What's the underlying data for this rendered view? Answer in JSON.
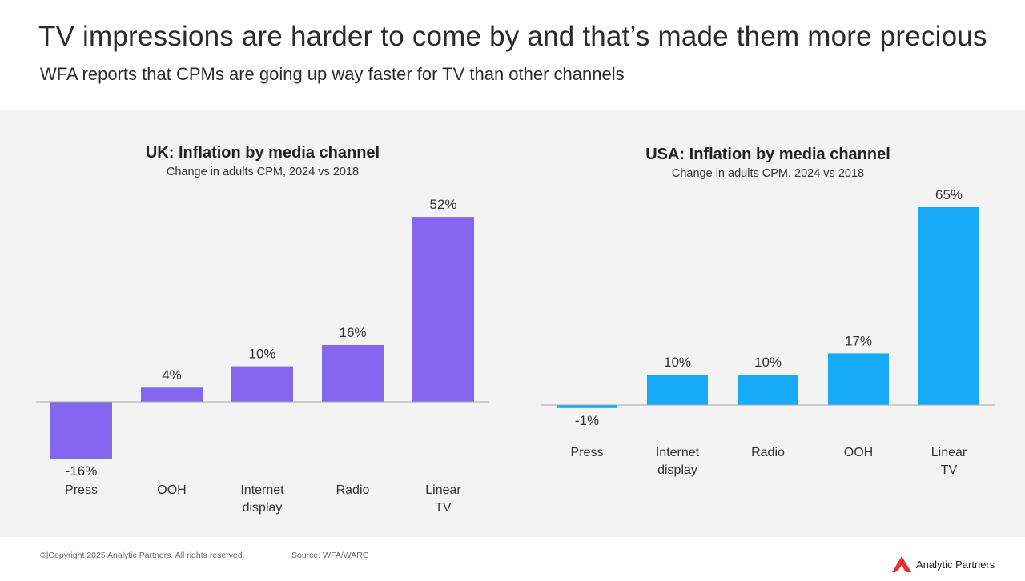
{
  "title": "TV impressions are harder to come by and that’s made them more precious",
  "subtitle": "WFA reports that CPMs are going up way faster for TV than other channels",
  "footer": {
    "copyright": "©|Copyright 2025 Analytic Partners. All rights reserved.",
    "source": "Source: WFA/WARC",
    "brand": "Analytic Partners",
    "brand_color": "#e8312f"
  },
  "chart_data": [
    {
      "type": "bar",
      "title": "UK: Inflation by media channel",
      "subtitle": "Change in adults CPM, 2024 vs 2018",
      "categories": [
        "Press",
        "OOH",
        "Internet display",
        "Radio",
        "Linear TV"
      ],
      "values": [
        -16,
        4,
        10,
        16,
        52
      ],
      "value_labels": [
        "-16%",
        "4%",
        "10%",
        "16%",
        "52%"
      ],
      "unit": "%",
      "color": "#8566ee",
      "xlabel": "",
      "ylabel": "",
      "grid": false
    },
    {
      "type": "bar",
      "title": "USA: Inflation by media channel",
      "subtitle": "Change in adults CPM, 2024 vs 2018",
      "categories": [
        "Press",
        "Internet display",
        "Radio",
        "OOH",
        "Linear TV"
      ],
      "values": [
        -1,
        10,
        10,
        17,
        65
      ],
      "value_labels": [
        "-1%",
        "10%",
        "10%",
        "17%",
        "65%"
      ],
      "unit": "%",
      "color": "#17aaf6",
      "xlabel": "",
      "ylabel": "",
      "grid": false
    }
  ]
}
